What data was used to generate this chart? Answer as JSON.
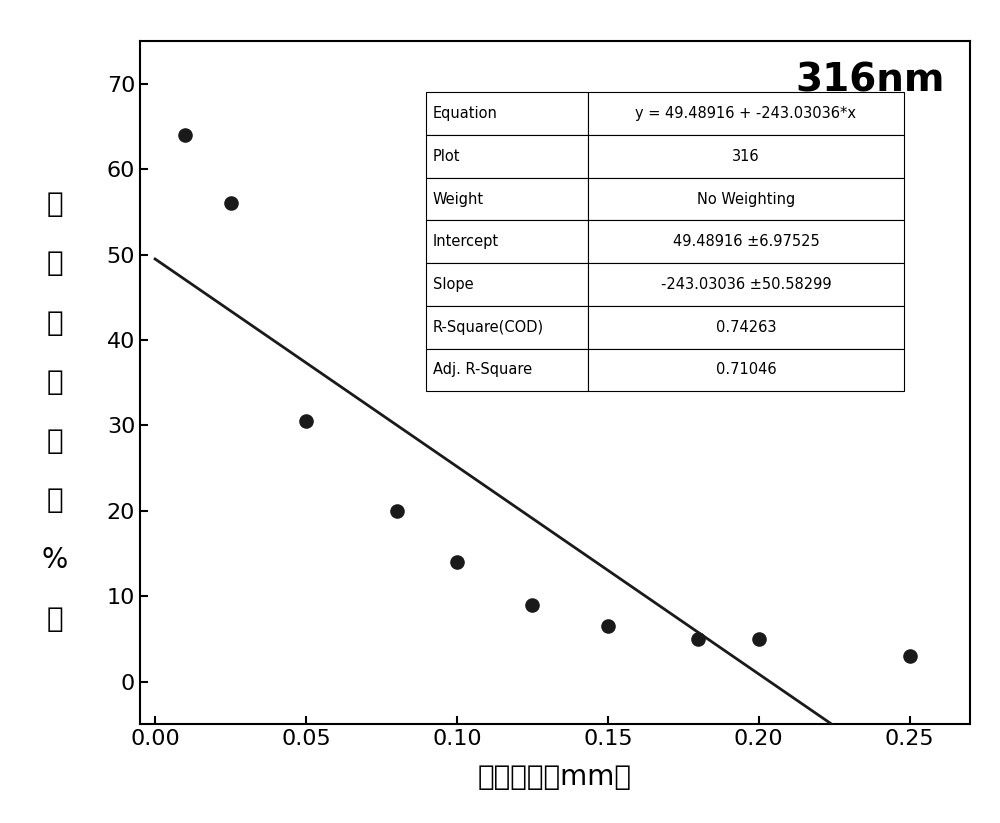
{
  "title": "316nm",
  "xlabel": "薄膜厚度（mm）",
  "ylabel_chars": [
    "紫",
    "外",
    "透",
    "射",
    "率",
    "（",
    "%",
    "）"
  ],
  "scatter_x": [
    0.01,
    0.025,
    0.05,
    0.08,
    0.1,
    0.125,
    0.15,
    0.18,
    0.2,
    0.25
  ],
  "scatter_y": [
    64,
    56,
    30.5,
    20,
    14,
    9,
    6.5,
    5,
    5,
    3
  ],
  "intercept": 49.48916,
  "slope": -243.03036,
  "line_x_start": 0.0,
  "line_x_end": 0.232,
  "xlim": [
    -0.005,
    0.27
  ],
  "ylim": [
    -5,
    75
  ],
  "yticks": [
    0,
    10,
    20,
    30,
    40,
    50,
    60,
    70
  ],
  "xticks": [
    0.0,
    0.05,
    0.1,
    0.15,
    0.2,
    0.25
  ],
  "table_data": [
    [
      "Equation",
      "y = 49.48916 + -243.03036*x"
    ],
    [
      "Plot",
      "316"
    ],
    [
      "Weight",
      "No Weighting"
    ],
    [
      "Intercept",
      "49.48916 ±6.97525"
    ],
    [
      "Slope",
      "-243.03036 ±50.58299"
    ],
    [
      "R-Square(COD)",
      "0.74263"
    ],
    [
      "Adj. R-Square",
      "0.71046"
    ]
  ],
  "dot_color": "#1a1a1a",
  "line_color": "#1a1a1a",
  "background_color": "#ffffff",
  "title_fontsize": 28,
  "axis_label_fontsize": 20,
  "tick_fontsize": 16,
  "table_fontsize": 10.5,
  "dot_size": 90
}
